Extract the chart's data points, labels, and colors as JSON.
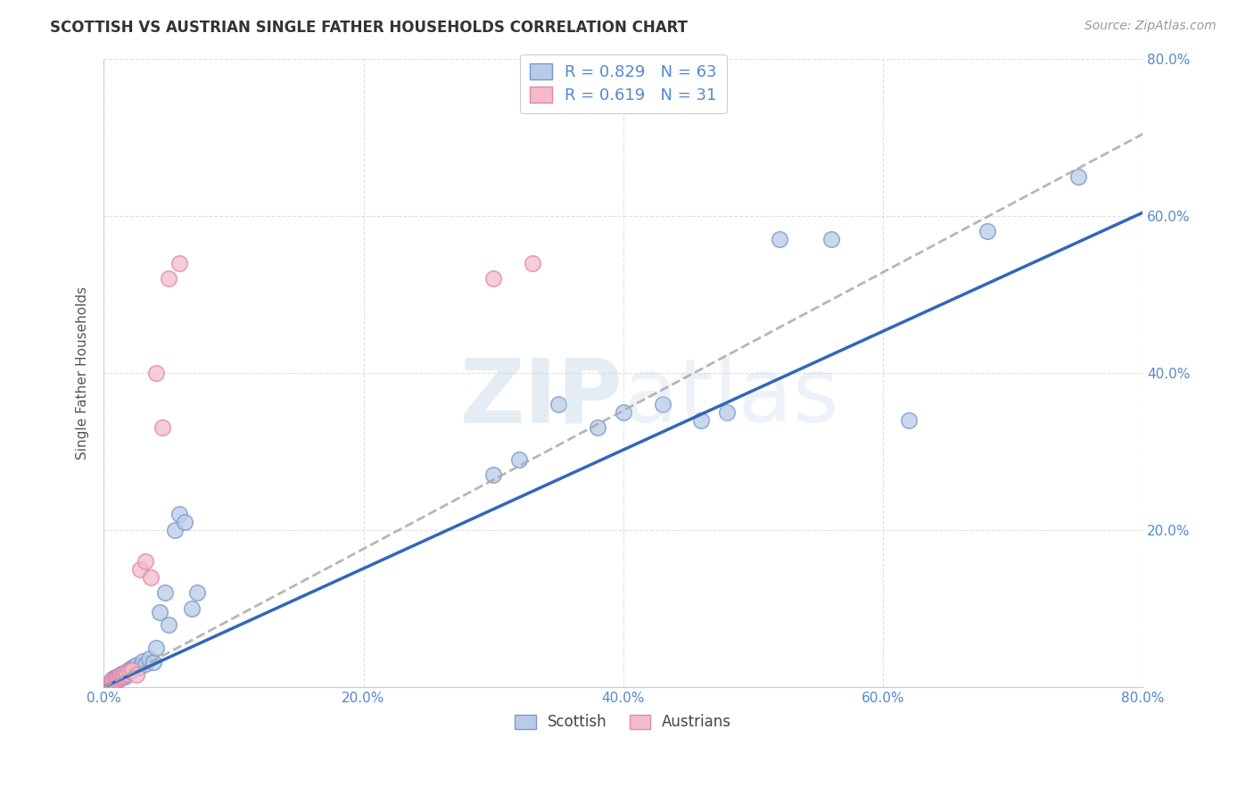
{
  "title": "SCOTTISH VS AUSTRIAN SINGLE FATHER HOUSEHOLDS CORRELATION CHART",
  "source": "Source: ZipAtlas.com",
  "ylabel": "Single Father Households",
  "xlim": [
    0,
    0.8
  ],
  "ylim": [
    0,
    0.8
  ],
  "legend_blue_R": "0.829",
  "legend_blue_N": "63",
  "legend_pink_R": "0.619",
  "legend_pink_N": "31",
  "blue_scatter_face": "#B8CCE8",
  "blue_scatter_edge": "#7799CC",
  "pink_scatter_face": "#F4BBCC",
  "pink_scatter_edge": "#E088AA",
  "blue_line_color": "#3366BB",
  "pink_line_color": "#AAAAAA",
  "watermark_zip_color": "#C5D5E8",
  "watermark_atlas_color": "#C5D5E8",
  "background_color": "#FFFFFF",
  "grid_color": "#DDDDDD",
  "title_color": "#333333",
  "tick_color": "#5588CC",
  "source_color": "#999999",
  "ylabel_color": "#555555",
  "blue_slope": 0.755,
  "blue_intercept": 0.0,
  "pink_slope": 0.88,
  "pink_intercept": 0.0,
  "scottish_x": [
    0.002,
    0.003,
    0.003,
    0.004,
    0.004,
    0.005,
    0.005,
    0.005,
    0.006,
    0.006,
    0.007,
    0.007,
    0.007,
    0.008,
    0.008,
    0.009,
    0.009,
    0.01,
    0.01,
    0.011,
    0.011,
    0.012,
    0.012,
    0.013,
    0.013,
    0.014,
    0.015,
    0.015,
    0.016,
    0.017,
    0.018,
    0.019,
    0.02,
    0.022,
    0.023,
    0.025,
    0.027,
    0.03,
    0.032,
    0.035,
    0.038,
    0.04,
    0.043,
    0.047,
    0.05,
    0.055,
    0.058,
    0.062,
    0.068,
    0.072,
    0.3,
    0.32,
    0.35,
    0.38,
    0.4,
    0.43,
    0.46,
    0.48,
    0.52,
    0.56,
    0.62,
    0.68,
    0.75
  ],
  "scottish_y": [
    0.002,
    0.003,
    0.004,
    0.003,
    0.005,
    0.004,
    0.006,
    0.007,
    0.005,
    0.008,
    0.006,
    0.009,
    0.01,
    0.007,
    0.011,
    0.008,
    0.012,
    0.01,
    0.013,
    0.009,
    0.014,
    0.011,
    0.015,
    0.012,
    0.016,
    0.013,
    0.015,
    0.018,
    0.014,
    0.017,
    0.019,
    0.021,
    0.023,
    0.024,
    0.026,
    0.028,
    0.025,
    0.033,
    0.03,
    0.036,
    0.032,
    0.05,
    0.095,
    0.12,
    0.08,
    0.2,
    0.22,
    0.21,
    0.1,
    0.12,
    0.27,
    0.29,
    0.36,
    0.33,
    0.35,
    0.36,
    0.34,
    0.35,
    0.57,
    0.57,
    0.34,
    0.58,
    0.65
  ],
  "austrian_x": [
    0.002,
    0.003,
    0.004,
    0.005,
    0.005,
    0.006,
    0.007,
    0.007,
    0.008,
    0.009,
    0.01,
    0.01,
    0.011,
    0.012,
    0.013,
    0.014,
    0.015,
    0.016,
    0.018,
    0.02,
    0.022,
    0.025,
    0.028,
    0.032,
    0.036,
    0.04,
    0.045,
    0.05,
    0.058,
    0.3,
    0.33
  ],
  "austrian_y": [
    0.002,
    0.003,
    0.004,
    0.004,
    0.006,
    0.005,
    0.007,
    0.009,
    0.008,
    0.01,
    0.009,
    0.012,
    0.011,
    0.013,
    0.015,
    0.014,
    0.016,
    0.018,
    0.017,
    0.02,
    0.022,
    0.016,
    0.15,
    0.16,
    0.14,
    0.4,
    0.33,
    0.52,
    0.54,
    0.52,
    0.54
  ]
}
